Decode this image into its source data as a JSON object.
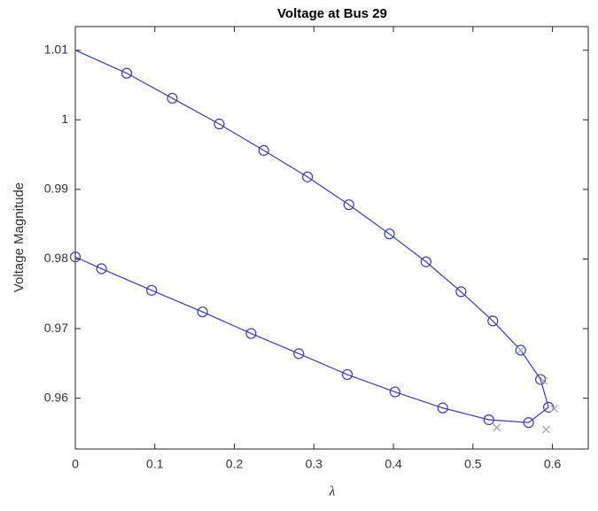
{
  "chart_data": {
    "type": "line",
    "title": "Voltage at Bus 29",
    "xlabel": "λ",
    "ylabel": "Voltage Magnitude",
    "xlim": [
      0,
      0.645
    ],
    "ylim": [
      0.9527,
      1.0134
    ],
    "xticks": [
      0,
      0.1,
      0.2,
      0.3,
      0.4,
      0.5,
      0.6
    ],
    "yticks": [
      0.96,
      0.97,
      0.98,
      0.99,
      1,
      1.01
    ],
    "grid": false,
    "series": [
      {
        "color": "#3c3cb4",
        "marker": "line",
        "x": [
          0,
          0.0646,
          0.122,
          0.181,
          0.237,
          0.292,
          0.344,
          0.395,
          0.441,
          0.485,
          0.525,
          0.56,
          0.585,
          0.595,
          0.57,
          0.52,
          0.462,
          0.402,
          0.342,
          0.281,
          0.221,
          0.16,
          0.096,
          0.033,
          0
        ],
        "values": [
          1.01,
          1.0067,
          1.0031,
          0.9994,
          0.9956,
          0.9918,
          0.9878,
          0.9836,
          0.9796,
          0.9753,
          0.9711,
          0.9669,
          0.9627,
          0.9587,
          0.9565,
          0.9569,
          0.9586,
          0.9609,
          0.9634,
          0.9664,
          0.9693,
          0.9724,
          0.9755,
          0.9786,
          0.9803
        ]
      },
      {
        "color": "#3c3cb4",
        "marker": "circle",
        "x": [
          0.0646,
          0.122,
          0.181,
          0.237,
          0.292,
          0.344,
          0.395,
          0.441,
          0.485,
          0.525,
          0.56,
          0.585,
          0.595,
          0.57,
          0.52,
          0.462,
          0.402,
          0.342,
          0.281,
          0.221,
          0.16,
          0.096,
          0.033,
          0
        ],
        "values": [
          1.0067,
          1.0031,
          0.9994,
          0.9956,
          0.9918,
          0.9878,
          0.9836,
          0.9796,
          0.9753,
          0.9711,
          0.9669,
          0.9627,
          0.9587,
          0.9565,
          0.9569,
          0.9586,
          0.9609,
          0.9634,
          0.9664,
          0.9693,
          0.9724,
          0.9755,
          0.9786,
          0.9803
        ]
      },
      {
        "color": "#a0a0a0",
        "marker": "cross",
        "x": [
          0.56,
          0.589,
          0.602,
          0.592,
          0.53
        ],
        "values": [
          0.9669,
          0.9625,
          0.9585,
          0.9555,
          0.9558
        ]
      }
    ]
  }
}
